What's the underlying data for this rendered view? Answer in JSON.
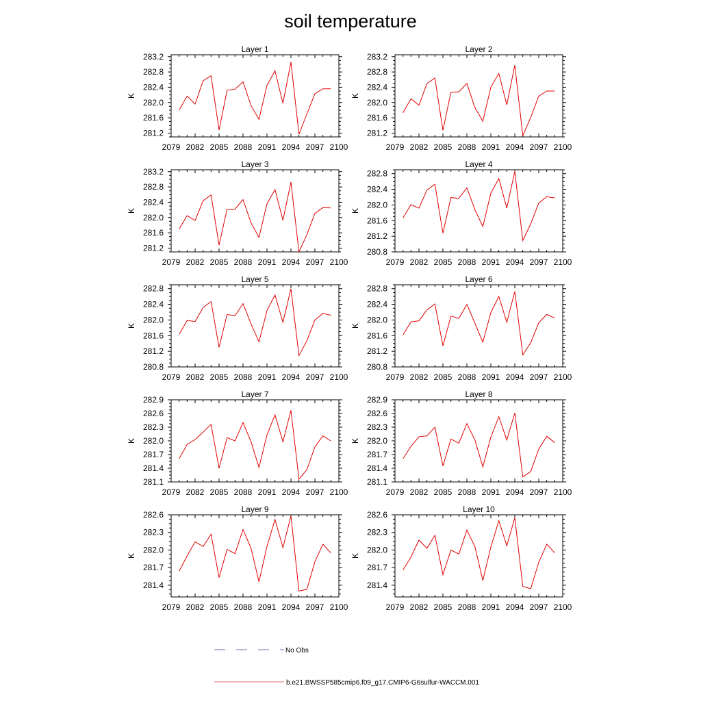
{
  "figure": {
    "title": "soil temperature",
    "legend": [
      {
        "label": "No Obs",
        "color": "#6b6bb4",
        "style": "dashed"
      },
      {
        "label": "b.e21.BWSSP585cmip6.f09_g17.CMIP6-G6sulfur-WACCM.001",
        "color": "#e36d6d",
        "style": "solid"
      }
    ]
  },
  "chart_data": [
    {
      "type": "line",
      "title": "Layer 1",
      "ylabel": "K",
      "color": "#e00000",
      "xlim": [
        2079,
        2100
      ],
      "xticks": [
        "2079",
        "2082",
        "2085",
        "2088",
        "2091",
        "2094",
        "2097",
        "2100"
      ],
      "ylim": [
        281.1,
        283.25
      ],
      "yticks": [
        "281.2",
        "281.6",
        "282.0",
        "282.4",
        "282.8",
        "283.2"
      ],
      "x": [
        2080,
        2081,
        2082,
        2083,
        2084,
        2085,
        2086,
        2087,
        2088,
        2089,
        2090,
        2091,
        2092,
        2093,
        2094,
        2095,
        2096,
        2097,
        2098,
        2099
      ],
      "y": [
        281.8,
        282.17,
        281.96,
        282.57,
        282.7,
        281.28,
        282.32,
        282.35,
        282.54,
        281.92,
        281.56,
        282.45,
        282.83,
        281.98,
        283.06,
        281.17,
        281.7,
        282.23,
        282.36,
        282.36
      ]
    },
    {
      "type": "line",
      "title": "Layer 2",
      "ylabel": "K",
      "color": "#e00000",
      "xlim": [
        2079,
        2100
      ],
      "xticks": [
        "2079",
        "2082",
        "2085",
        "2088",
        "2091",
        "2094",
        "2097",
        "2100"
      ],
      "ylim": [
        281.1,
        283.25
      ],
      "yticks": [
        "281.2",
        "281.6",
        "282.0",
        "282.4",
        "282.8",
        "283.2"
      ],
      "x": [
        2080,
        2081,
        2082,
        2083,
        2084,
        2085,
        2086,
        2087,
        2088,
        2089,
        2090,
        2091,
        2092,
        2093,
        2094,
        2095,
        2096,
        2097,
        2098,
        2099
      ],
      "y": [
        281.73,
        282.1,
        281.93,
        282.5,
        282.64,
        281.27,
        282.27,
        282.28,
        282.5,
        281.87,
        281.51,
        282.4,
        282.76,
        281.94,
        282.98,
        281.13,
        281.61,
        282.17,
        282.3,
        282.3
      ]
    },
    {
      "type": "line",
      "title": "Layer 3",
      "ylabel": "K",
      "color": "#e00000",
      "xlim": [
        2079,
        2100
      ],
      "xticks": [
        "2079",
        "2082",
        "2085",
        "2088",
        "2091",
        "2094",
        "2097",
        "2100"
      ],
      "ylim": [
        281.1,
        283.25
      ],
      "yticks": [
        "281.2",
        "281.6",
        "282.0",
        "282.4",
        "282.8",
        "283.2"
      ],
      "x": [
        2080,
        2081,
        2082,
        2083,
        2084,
        2085,
        2086,
        2087,
        2088,
        2089,
        2090,
        2091,
        2092,
        2093,
        2094,
        2095,
        2096,
        2097,
        2098,
        2099
      ],
      "y": [
        281.7,
        282.05,
        281.92,
        282.44,
        282.59,
        281.28,
        282.22,
        282.22,
        282.47,
        281.86,
        281.48,
        282.36,
        282.73,
        281.93,
        282.93,
        281.1,
        281.55,
        282.11,
        282.26,
        282.25
      ]
    },
    {
      "type": "line",
      "title": "Layer 4",
      "ylabel": "K",
      "color": "#e00000",
      "xlim": [
        2079,
        2100
      ],
      "xticks": [
        "2079",
        "2082",
        "2085",
        "2088",
        "2091",
        "2094",
        "2097",
        "2100"
      ],
      "ylim": [
        280.8,
        282.9
      ],
      "yticks": [
        "280.8",
        "281.2",
        "281.6",
        "282.0",
        "282.4",
        "282.8"
      ],
      "x": [
        2080,
        2081,
        2082,
        2083,
        2084,
        2085,
        2086,
        2087,
        2088,
        2089,
        2090,
        2091,
        2092,
        2093,
        2094,
        2095,
        2096,
        2097,
        2098,
        2099
      ],
      "y": [
        281.67,
        282.01,
        281.92,
        282.38,
        282.53,
        281.28,
        282.19,
        282.17,
        282.44,
        281.88,
        281.45,
        282.3,
        282.68,
        281.92,
        282.86,
        281.09,
        281.52,
        282.05,
        282.21,
        282.18
      ]
    },
    {
      "type": "line",
      "title": "Layer 5",
      "ylabel": "K",
      "color": "#e00000",
      "xlim": [
        2079,
        2100
      ],
      "xticks": [
        "2079",
        "2082",
        "2085",
        "2088",
        "2091",
        "2094",
        "2097",
        "2100"
      ],
      "ylim": [
        280.8,
        282.9
      ],
      "yticks": [
        "280.8",
        "281.2",
        "281.6",
        "282.0",
        "282.4",
        "282.8"
      ],
      "x": [
        2080,
        2081,
        2082,
        2083,
        2084,
        2085,
        2086,
        2087,
        2088,
        2089,
        2090,
        2091,
        2092,
        2093,
        2094,
        2095,
        2096,
        2097,
        2098,
        2099
      ],
      "y": [
        281.63,
        281.99,
        281.96,
        282.32,
        282.47,
        281.3,
        282.14,
        282.11,
        282.42,
        281.9,
        281.44,
        282.24,
        282.64,
        281.94,
        282.8,
        281.09,
        281.47,
        282.0,
        282.17,
        282.12
      ]
    },
    {
      "type": "line",
      "title": "Layer 6",
      "ylabel": "K",
      "color": "#e00000",
      "xlim": [
        2079,
        2100
      ],
      "xticks": [
        "2079",
        "2082",
        "2085",
        "2088",
        "2091",
        "2094",
        "2097",
        "2100"
      ],
      "ylim": [
        280.8,
        282.9
      ],
      "yticks": [
        "280.8",
        "281.2",
        "281.6",
        "282.0",
        "282.4",
        "282.8"
      ],
      "x": [
        2080,
        2081,
        2082,
        2083,
        2084,
        2085,
        2086,
        2087,
        2088,
        2089,
        2090,
        2091,
        2092,
        2093,
        2094,
        2095,
        2096,
        2097,
        2098,
        2099
      ],
      "y": [
        281.62,
        281.95,
        281.98,
        282.26,
        282.41,
        281.34,
        282.1,
        282.04,
        282.4,
        281.92,
        281.43,
        282.19,
        282.6,
        281.94,
        282.73,
        281.11,
        281.42,
        281.93,
        282.14,
        282.05
      ]
    },
    {
      "type": "line",
      "title": "Layer 7",
      "ylabel": "K",
      "color": "#e00000",
      "xlim": [
        2079,
        2100
      ],
      "xticks": [
        "2079",
        "2082",
        "2085",
        "2088",
        "2091",
        "2094",
        "2097",
        "2100"
      ],
      "ylim": [
        281.1,
        282.9
      ],
      "yticks": [
        "281.1",
        "281.4",
        "281.7",
        "282.0",
        "282.3",
        "282.6",
        "282.9"
      ],
      "x": [
        2080,
        2081,
        2082,
        2083,
        2084,
        2085,
        2086,
        2087,
        2088,
        2089,
        2090,
        2091,
        2092,
        2093,
        2094,
        2095,
        2096,
        2097,
        2098,
        2099
      ],
      "y": [
        281.61,
        281.92,
        282.03,
        282.19,
        282.36,
        281.4,
        282.07,
        282.0,
        282.4,
        281.98,
        281.42,
        282.13,
        282.57,
        281.98,
        282.67,
        281.16,
        281.37,
        281.87,
        282.11,
        282.0
      ]
    },
    {
      "type": "line",
      "title": "Layer 8",
      "ylabel": "K",
      "color": "#e00000",
      "xlim": [
        2079,
        2100
      ],
      "xticks": [
        "2079",
        "2082",
        "2085",
        "2088",
        "2091",
        "2094",
        "2097",
        "2100"
      ],
      "ylim": [
        281.1,
        282.9
      ],
      "yticks": [
        "281.1",
        "281.4",
        "281.7",
        "282.0",
        "282.3",
        "282.6",
        "282.9"
      ],
      "x": [
        2080,
        2081,
        2082,
        2083,
        2084,
        2085,
        2086,
        2087,
        2088,
        2089,
        2090,
        2091,
        2092,
        2093,
        2094,
        2095,
        2096,
        2097,
        2098,
        2099
      ],
      "y": [
        281.61,
        281.88,
        282.09,
        282.11,
        282.3,
        281.45,
        282.04,
        281.95,
        282.38,
        282.02,
        281.43,
        282.08,
        282.53,
        282.02,
        282.61,
        281.21,
        281.33,
        281.82,
        282.1,
        281.96
      ]
    },
    {
      "type": "line",
      "title": "Layer 9",
      "ylabel": "K",
      "color": "#e00000",
      "xlim": [
        2079,
        2100
      ],
      "xticks": [
        "2079",
        "2082",
        "2085",
        "2088",
        "2091",
        "2094",
        "2097",
        "2100"
      ],
      "ylim": [
        281.2,
        282.6
      ],
      "yticks": [
        "281.4",
        "281.7",
        "282.0",
        "282.3",
        "282.6"
      ],
      "x": [
        2080,
        2081,
        2082,
        2083,
        2084,
        2085,
        2086,
        2087,
        2088,
        2089,
        2090,
        2091,
        2092,
        2093,
        2094,
        2095,
        2096,
        2097,
        2098,
        2099
      ],
      "y": [
        281.64,
        281.9,
        282.14,
        282.06,
        282.27,
        281.53,
        282.01,
        281.94,
        282.35,
        282.03,
        281.46,
        282.06,
        282.52,
        282.04,
        282.58,
        281.3,
        281.33,
        281.8,
        282.1,
        281.95
      ]
    },
    {
      "type": "line",
      "title": "Layer 10",
      "ylabel": "K",
      "color": "#e00000",
      "xlim": [
        2079,
        2100
      ],
      "xticks": [
        "2079",
        "2082",
        "2085",
        "2088",
        "2091",
        "2094",
        "2097",
        "2100"
      ],
      "ylim": [
        281.2,
        282.6
      ],
      "yticks": [
        "281.4",
        "281.7",
        "282.0",
        "282.3",
        "282.6"
      ],
      "x": [
        2080,
        2081,
        2082,
        2083,
        2084,
        2085,
        2086,
        2087,
        2088,
        2089,
        2090,
        2091,
        2092,
        2093,
        2094,
        2095,
        2096,
        2097,
        2098,
        2099
      ],
      "y": [
        281.66,
        281.88,
        282.17,
        282.03,
        282.25,
        281.58,
        282.0,
        281.93,
        282.34,
        282.06,
        281.48,
        282.05,
        282.5,
        282.07,
        282.55,
        281.38,
        281.34,
        281.79,
        282.1,
        281.95
      ]
    }
  ]
}
